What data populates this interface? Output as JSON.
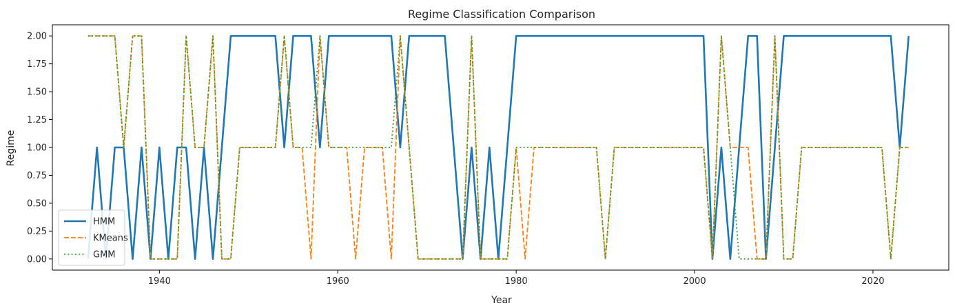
{
  "chart_data": {
    "type": "line",
    "title": "Regime Classification Comparison",
    "xlabel": "Year",
    "ylabel": "Regime",
    "xlim": [
      1928,
      2028.5
    ],
    "ylim": [
      -0.1,
      2.1
    ],
    "xticks": [
      1940,
      1960,
      1980,
      2000,
      2020
    ],
    "yticks": [
      0.0,
      0.25,
      0.5,
      0.75,
      1.0,
      1.25,
      1.5,
      1.75,
      2.0
    ],
    "ytick_labels": [
      "0.00",
      "0.25",
      "0.50",
      "0.75",
      "1.00",
      "1.25",
      "1.50",
      "1.75",
      "2.00"
    ],
    "grid": false,
    "legend_position": "lower-left",
    "x": [
      1932,
      1933,
      1934,
      1935,
      1936,
      1937,
      1938,
      1939,
      1940,
      1941,
      1942,
      1943,
      1944,
      1945,
      1946,
      1947,
      1948,
      1949,
      1950,
      1951,
      1952,
      1953,
      1954,
      1955,
      1956,
      1957,
      1958,
      1959,
      1960,
      1961,
      1962,
      1963,
      1964,
      1965,
      1966,
      1967,
      1968,
      1969,
      1970,
      1971,
      1972,
      1973,
      1974,
      1975,
      1976,
      1977,
      1978,
      1979,
      1980,
      1981,
      1982,
      1983,
      1984,
      1985,
      1986,
      1987,
      1988,
      1989,
      1990,
      1991,
      1992,
      1993,
      1994,
      1995,
      1996,
      1997,
      1998,
      1999,
      2000,
      2001,
      2002,
      2003,
      2004,
      2005,
      2006,
      2007,
      2008,
      2009,
      2010,
      2011,
      2012,
      2013,
      2014,
      2015,
      2016,
      2017,
      2018,
      2019,
      2020,
      2021,
      2022,
      2023,
      2024
    ],
    "series": [
      {
        "name": "HMM",
        "color": "#1f77b4",
        "style": "solid",
        "values": [
          0,
          1,
          0,
          1,
          1,
          0,
          1,
          0,
          1,
          0,
          1,
          1,
          0,
          1,
          0,
          1,
          2,
          2,
          2,
          2,
          2,
          2,
          1,
          2,
          2,
          2,
          1,
          2,
          2,
          2,
          2,
          2,
          2,
          2,
          2,
          1,
          2,
          2,
          2,
          2,
          2,
          1,
          0,
          1,
          0,
          1,
          0,
          1,
          2,
          2,
          2,
          2,
          2,
          2,
          2,
          2,
          2,
          2,
          2,
          2,
          2,
          2,
          2,
          2,
          2,
          2,
          2,
          2,
          2,
          2,
          0,
          1,
          0,
          1,
          2,
          2,
          0,
          1,
          2,
          2,
          2,
          2,
          2,
          2,
          2,
          2,
          2,
          2,
          2,
          2,
          2,
          1,
          2
        ]
      },
      {
        "name": "KMeans",
        "color": "#ff7f0e",
        "style": "dashed",
        "values": [
          2,
          2,
          2,
          2,
          1,
          2,
          2,
          0,
          0,
          0,
          0,
          2,
          1,
          1,
          2,
          0,
          0,
          1,
          1,
          1,
          1,
          1,
          2,
          1,
          1,
          0,
          2,
          1,
          1,
          1,
          0,
          1,
          1,
          1,
          0,
          2,
          1,
          0,
          0,
          0,
          0,
          0,
          0,
          2,
          0,
          0,
          0,
          0,
          1,
          0,
          1,
          1,
          1,
          1,
          1,
          1,
          1,
          1,
          0,
          1,
          1,
          1,
          1,
          1,
          1,
          1,
          1,
          1,
          1,
          1,
          0,
          2,
          1,
          1,
          1,
          0,
          0,
          2,
          0,
          0,
          1,
          1,
          1,
          1,
          1,
          1,
          1,
          1,
          1,
          1,
          0,
          1,
          1
        ]
      },
      {
        "name": "GMM",
        "color": "#2ca02c",
        "style": "dotted",
        "values": [
          2,
          2,
          2,
          2,
          1,
          2,
          2,
          0,
          0,
          0,
          0,
          2,
          1,
          1,
          2,
          0,
          0,
          1,
          1,
          1,
          1,
          1,
          2,
          1,
          1,
          1,
          2,
          1,
          1,
          1,
          1,
          1,
          1,
          1,
          1,
          2,
          1,
          0,
          0,
          0,
          0,
          0,
          0,
          2,
          0,
          0,
          0,
          0,
          1,
          1,
          1,
          1,
          1,
          1,
          1,
          1,
          1,
          1,
          0,
          1,
          1,
          1,
          1,
          1,
          1,
          1,
          1,
          1,
          1,
          1,
          0,
          2,
          1,
          0,
          0,
          0,
          0,
          2,
          0,
          0,
          1,
          1,
          1,
          1,
          1,
          1,
          1,
          1,
          1,
          1,
          0,
          1,
          1
        ]
      }
    ]
  }
}
